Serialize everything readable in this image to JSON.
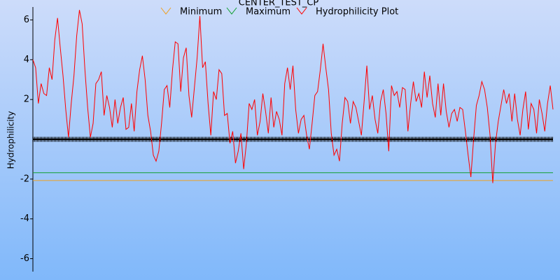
{
  "chart_data": {
    "type": "line",
    "title": "CENTER_TEST_CP",
    "y_label": "Hydrophilicity",
    "ylim": [
      -6.65,
      6.65
    ],
    "yticks": [
      6,
      4,
      2,
      -2,
      -4,
      -6
    ],
    "series": [
      {
        "name": "Minimum",
        "color": "#f0a020",
        "level": -2.07
      },
      {
        "name": "Maximum",
        "color": "#10a030",
        "level": -1.68
      },
      {
        "name": "Hydrophilicity Plot",
        "color": "#ff0000",
        "values": [
          4.0,
          3.6,
          1.8,
          2.8,
          2.3,
          2.2,
          3.6,
          3.0,
          5.0,
          6.1,
          4.6,
          3.2,
          1.5,
          0.1,
          1.8,
          3.2,
          5.2,
          6.5,
          5.8,
          3.5,
          1.6,
          0.1,
          0.8,
          2.8,
          3.0,
          3.4,
          1.2,
          2.2,
          1.6,
          0.6,
          2.0,
          0.8,
          1.6,
          2.1,
          0.5,
          0.6,
          1.8,
          0.4,
          2.4,
          3.5,
          4.2,
          3.0,
          1.2,
          0.4,
          -0.8,
          -1.1,
          -0.6,
          0.8,
          2.5,
          2.7,
          1.6,
          3.5,
          4.9,
          4.8,
          2.4,
          4.1,
          4.6,
          2.2,
          1.1,
          2.6,
          4.1,
          6.2,
          3.6,
          3.9,
          1.8,
          0.2,
          2.4,
          2.0,
          3.5,
          3.3,
          1.2,
          1.3,
          -0.2,
          0.4,
          -1.2,
          -0.6,
          0.3,
          -1.5,
          -0.2,
          1.8,
          1.5,
          2.0,
          0.2,
          0.9,
          2.3,
          1.4,
          0.3,
          2.1,
          0.6,
          1.4,
          1.0,
          0.2,
          2.8,
          3.6,
          2.5,
          3.7,
          1.5,
          0.3,
          1.0,
          1.2,
          0.2,
          -0.5,
          0.8,
          2.2,
          2.4,
          3.5,
          4.8,
          3.6,
          2.5,
          0.3,
          -0.8,
          -0.5,
          -1.1,
          0.8,
          2.1,
          1.9,
          0.8,
          1.9,
          1.6,
          0.9,
          0.2,
          1.9,
          3.7,
          1.5,
          2.2,
          1.0,
          0.3,
          1.9,
          2.5,
          1.3,
          -0.6,
          2.7,
          2.2,
          2.4,
          1.6,
          2.6,
          2.5,
          0.4,
          1.8,
          2.9,
          1.9,
          2.3,
          1.6,
          3.4,
          2.1,
          3.2,
          1.8,
          1.1,
          2.8,
          1.2,
          2.8,
          1.4,
          0.6,
          1.3,
          1.5,
          0.9,
          1.6,
          1.5,
          0.4,
          -0.8,
          -1.9,
          0.0,
          1.7,
          2.2,
          2.9,
          2.5,
          1.6,
          0.2,
          -2.2,
          -0.2,
          0.9,
          1.7,
          2.5,
          1.8,
          2.3,
          0.9,
          2.3,
          1.0,
          0.2,
          1.5,
          2.4,
          0.5,
          1.8,
          1.5,
          0.3,
          2.0,
          1.3,
          0.4,
          1.8,
          2.7,
          1.5
        ]
      }
    ]
  }
}
